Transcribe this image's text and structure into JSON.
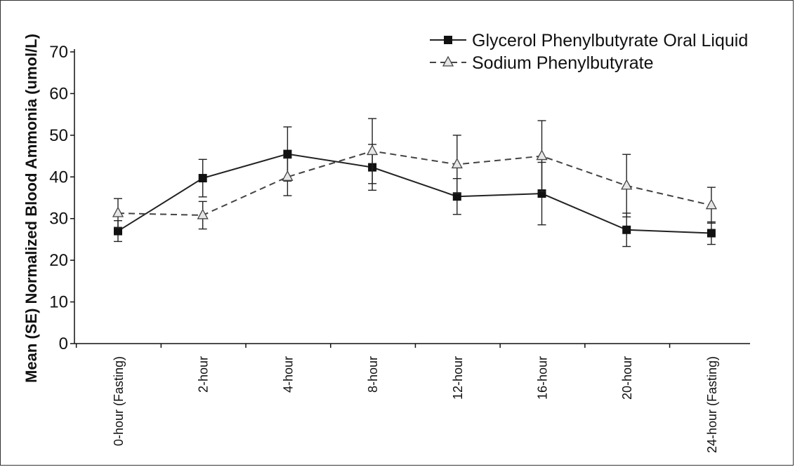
{
  "chart_data": {
    "type": "line",
    "title": "",
    "xlabel": "",
    "ylabel": "Mean (SE) Normalized Blood Ammonia (umol/L)",
    "ylim": [
      0,
      70
    ],
    "yticks": [
      0,
      10,
      20,
      30,
      40,
      50,
      60,
      70
    ],
    "categories": [
      "0-hour (Fasting)",
      "2-hour",
      "4-hour",
      "8-hour",
      "12-hour",
      "16-hour",
      "20-hour",
      "24-hour (Fasting)"
    ],
    "grid": false,
    "legend_position": "top-right",
    "series": [
      {
        "name": "Glycerol Phenylbutyrate Oral Liquid",
        "marker": "filled-square",
        "line_style": "solid",
        "color": "#222222",
        "values": [
          27,
          39.7,
          45.5,
          42.3,
          35.3,
          36,
          27.3,
          26.5
        ],
        "error": [
          2.5,
          4.5,
          6.5,
          5.5,
          4.3,
          7.5,
          4.0,
          2.7
        ]
      },
      {
        "name": "Sodium Phenylbutyrate",
        "marker": "open-triangle",
        "line_style": "dashed",
        "color": "#444444",
        "values": [
          31.3,
          30.8,
          40,
          46.2,
          43,
          45,
          37.9,
          33.2
        ],
        "error": [
          3.5,
          3.3,
          4.5,
          7.8,
          7.0,
          8.5,
          7.5,
          4.3
        ]
      }
    ]
  }
}
